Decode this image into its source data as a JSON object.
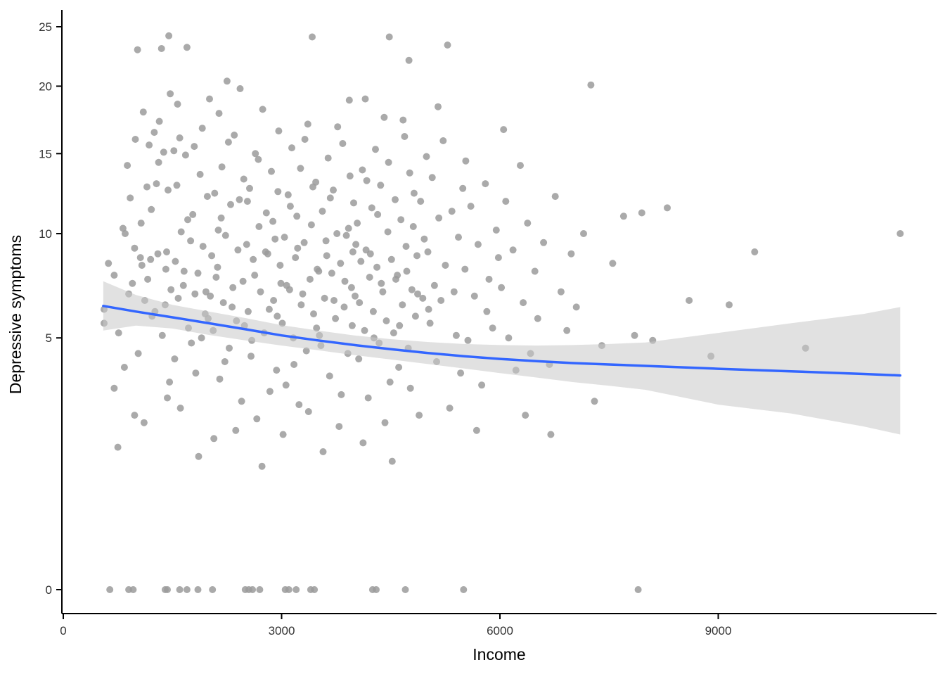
{
  "chart_data": {
    "type": "scatter",
    "title": "",
    "xlabel": "Income",
    "ylabel": "Depressive symptoms",
    "x_axis": {
      "ticks": [
        0,
        3000,
        6000,
        9000
      ],
      "range": [
        0,
        12000
      ]
    },
    "y_axis": {
      "ticks": [
        0,
        5,
        10,
        15,
        20,
        25
      ],
      "range": [
        0,
        25.5
      ],
      "transform": "sqrt"
    },
    "grid": false,
    "legend": "none",
    "point_color": "#9b9b9b",
    "point_opacity": 0.85,
    "smooth_line_color": "#3366FF",
    "band_color": "#c9c9c9",
    "axis_color": "#000000",
    "smooth": {
      "x": [
        550,
        1000,
        1500,
        2000,
        2500,
        3000,
        3500,
        4000,
        4500,
        5000,
        5500,
        6000,
        6500,
        7000,
        7500,
        8000,
        9000,
        10000,
        11000,
        11500
      ],
      "y": [
        6.35,
        6.1,
        5.85,
        5.6,
        5.35,
        5.1,
        4.9,
        4.72,
        4.56,
        4.42,
        4.3,
        4.2,
        4.12,
        4.05,
        4.0,
        3.95,
        3.85,
        3.76,
        3.67,
        3.62
      ],
      "lower": [
        5.3,
        5.5,
        5.38,
        5.12,
        4.9,
        4.7,
        4.52,
        4.34,
        4.18,
        4.02,
        3.86,
        3.7,
        3.55,
        3.4,
        3.28,
        3.15,
        2.7,
        2.45,
        2.1,
        1.9
      ],
      "upper": [
        7.5,
        6.85,
        6.4,
        6.1,
        5.82,
        5.52,
        5.3,
        5.1,
        4.95,
        4.84,
        4.76,
        4.72,
        4.7,
        4.72,
        4.76,
        4.82,
        5.2,
        5.6,
        6.0,
        6.3
      ]
    },
    "points": [
      [
        560,
        5.6
      ],
      [
        560,
        6.2
      ],
      [
        620,
        8.4
      ],
      [
        640,
        0
      ],
      [
        700,
        3.2
      ],
      [
        700,
        7.8
      ],
      [
        750,
        1.6
      ],
      [
        760,
        5.2
      ],
      [
        820,
        10.3
      ],
      [
        840,
        3.9
      ],
      [
        850,
        10.0
      ],
      [
        880,
        14.2
      ],
      [
        900,
        6.9
      ],
      [
        900,
        0
      ],
      [
        920,
        12.1
      ],
      [
        950,
        7.4
      ],
      [
        960,
        0
      ],
      [
        980,
        2.4
      ],
      [
        980,
        9.2
      ],
      [
        990,
        16.0
      ],
      [
        1020,
        23.0
      ],
      [
        1030,
        4.4
      ],
      [
        1060,
        8.7
      ],
      [
        1070,
        10.6
      ],
      [
        1080,
        8.3
      ],
      [
        1100,
        18.0
      ],
      [
        1110,
        2.2
      ],
      [
        1120,
        6.6
      ],
      [
        1150,
        12.8
      ],
      [
        1160,
        7.6
      ],
      [
        1180,
        15.6
      ],
      [
        1200,
        8.6
      ],
      [
        1210,
        11.4
      ],
      [
        1220,
        5.9
      ],
      [
        1250,
        16.5
      ],
      [
        1260,
        6.1
      ],
      [
        1280,
        13.0
      ],
      [
        1300,
        8.9
      ],
      [
        1310,
        14.4
      ],
      [
        1320,
        17.3
      ],
      [
        1350,
        23.1
      ],
      [
        1360,
        5.1
      ],
      [
        1380,
        15.1
      ],
      [
        1400,
        6.4
      ],
      [
        1400,
        0
      ],
      [
        1410,
        8.1
      ],
      [
        1420,
        9.0
      ],
      [
        1430,
        2.9
      ],
      [
        1430,
        0
      ],
      [
        1440,
        12.6
      ],
      [
        1450,
        24.2
      ],
      [
        1460,
        3.4
      ],
      [
        1470,
        19.4
      ],
      [
        1480,
        7.1
      ],
      [
        1520,
        15.2
      ],
      [
        1530,
        4.2
      ],
      [
        1540,
        8.5
      ],
      [
        1560,
        12.9
      ],
      [
        1570,
        18.6
      ],
      [
        1580,
        6.7
      ],
      [
        1600,
        16.1
      ],
      [
        1600,
        0
      ],
      [
        1610,
        2.6
      ],
      [
        1620,
        10.1
      ],
      [
        1650,
        7.3
      ],
      [
        1660,
        8.0
      ],
      [
        1680,
        14.9
      ],
      [
        1700,
        23.2
      ],
      [
        1700,
        0
      ],
      [
        1710,
        10.8
      ],
      [
        1720,
        5.4
      ],
      [
        1750,
        9.6
      ],
      [
        1760,
        4.8
      ],
      [
        1780,
        11.1
      ],
      [
        1800,
        15.5
      ],
      [
        1810,
        6.9
      ],
      [
        1820,
        3.7
      ],
      [
        1850,
        7.9
      ],
      [
        1850,
        0
      ],
      [
        1860,
        1.4
      ],
      [
        1880,
        13.6
      ],
      [
        1900,
        5.0
      ],
      [
        1910,
        16.8
      ],
      [
        1920,
        9.3
      ],
      [
        1950,
        6.0
      ],
      [
        1960,
        7.0
      ],
      [
        1980,
        12.2
      ],
      [
        1990,
        5.8
      ],
      [
        2010,
        19.0
      ],
      [
        2020,
        6.8
      ],
      [
        2040,
        8.8
      ],
      [
        2050,
        0
      ],
      [
        2060,
        5.3
      ],
      [
        2070,
        1.8
      ],
      [
        2080,
        12.4
      ],
      [
        2100,
        7.7
      ],
      [
        2120,
        8.2
      ],
      [
        2130,
        10.2
      ],
      [
        2140,
        17.9
      ],
      [
        2150,
        3.5
      ],
      [
        2170,
        10.9
      ],
      [
        2180,
        14.1
      ],
      [
        2200,
        6.5
      ],
      [
        2220,
        4.1
      ],
      [
        2230,
        9.9
      ],
      [
        2250,
        20.4
      ],
      [
        2270,
        15.8
      ],
      [
        2280,
        4.6
      ],
      [
        2300,
        11.7
      ],
      [
        2320,
        6.3
      ],
      [
        2330,
        7.2
      ],
      [
        2350,
        16.3
      ],
      [
        2370,
        2.0
      ],
      [
        2380,
        5.7
      ],
      [
        2400,
        9.1
      ],
      [
        2420,
        12.0
      ],
      [
        2430,
        19.8
      ],
      [
        2450,
        2.8
      ],
      [
        2470,
        7.5
      ],
      [
        2480,
        13.3
      ],
      [
        2490,
        5.5
      ],
      [
        2500,
        0
      ],
      [
        2520,
        9.4
      ],
      [
        2530,
        11.9
      ],
      [
        2540,
        6.1
      ],
      [
        2550,
        0
      ],
      [
        2560,
        12.7
      ],
      [
        2580,
        4.3
      ],
      [
        2590,
        4.9
      ],
      [
        2600,
        0
      ],
      [
        2610,
        8.6
      ],
      [
        2630,
        7.8
      ],
      [
        2640,
        15.0
      ],
      [
        2660,
        2.3
      ],
      [
        2680,
        14.6
      ],
      [
        2690,
        10.4
      ],
      [
        2700,
        0
      ],
      [
        2710,
        7.0
      ],
      [
        2730,
        1.2
      ],
      [
        2740,
        18.2
      ],
      [
        2760,
        5.2
      ],
      [
        2780,
        9.0
      ],
      [
        2790,
        11.2
      ],
      [
        2810,
        8.9
      ],
      [
        2830,
        6.2
      ],
      [
        2840,
        3.1
      ],
      [
        2860,
        13.8
      ],
      [
        2880,
        10.7
      ],
      [
        2890,
        6.6
      ],
      [
        2910,
        9.7
      ],
      [
        2930,
        3.8
      ],
      [
        2940,
        5.9
      ],
      [
        2950,
        12.5
      ],
      [
        2960,
        16.6
      ],
      [
        2980,
        8.3
      ],
      [
        2990,
        7.4
      ],
      [
        3010,
        5.6
      ],
      [
        3020,
        1.9
      ],
      [
        3040,
        9.8
      ],
      [
        3050,
        0
      ],
      [
        3060,
        3.3
      ],
      [
        3070,
        7.3
      ],
      [
        3090,
        12.3
      ],
      [
        3100,
        0
      ],
      [
        3110,
        7.1
      ],
      [
        3120,
        11.6
      ],
      [
        3140,
        15.4
      ],
      [
        3160,
        5.0
      ],
      [
        3170,
        4.0
      ],
      [
        3190,
        8.7
      ],
      [
        3200,
        0
      ],
      [
        3210,
        11.0
      ],
      [
        3220,
        9.2
      ],
      [
        3240,
        2.7
      ],
      [
        3260,
        14.0
      ],
      [
        3270,
        6.4
      ],
      [
        3290,
        6.9
      ],
      [
        3310,
        9.5
      ],
      [
        3320,
        16.0
      ],
      [
        3340,
        4.5
      ],
      [
        3360,
        17.1
      ],
      [
        3370,
        2.5
      ],
      [
        3390,
        7.6
      ],
      [
        3400,
        0
      ],
      [
        3410,
        10.5
      ],
      [
        3420,
        24.1
      ],
      [
        3430,
        12.8
      ],
      [
        3440,
        6.0
      ],
      [
        3450,
        0
      ],
      [
        3470,
        13.1
      ],
      [
        3480,
        5.4
      ],
      [
        3490,
        8.1
      ],
      [
        3510,
        8.0
      ],
      [
        3520,
        5.1
      ],
      [
        3540,
        4.7
      ],
      [
        3560,
        11.3
      ],
      [
        3570,
        1.5
      ],
      [
        3590,
        6.7
      ],
      [
        3610,
        9.6
      ],
      [
        3620,
        8.8
      ],
      [
        3640,
        14.7
      ],
      [
        3660,
        3.6
      ],
      [
        3670,
        12.1
      ],
      [
        3690,
        7.9
      ],
      [
        3710,
        12.6
      ],
      [
        3720,
        6.6
      ],
      [
        3740,
        5.8
      ],
      [
        3760,
        10.0
      ],
      [
        3770,
        16.9
      ],
      [
        3790,
        2.1
      ],
      [
        3810,
        8.4
      ],
      [
        3820,
        3.0
      ],
      [
        3840,
        15.7
      ],
      [
        3860,
        6.3
      ],
      [
        3870,
        7.5
      ],
      [
        3890,
        9.9
      ],
      [
        3910,
        4.4
      ],
      [
        3920,
        10.3
      ],
      [
        3930,
        18.9
      ],
      [
        3940,
        13.5
      ],
      [
        3960,
        7.2
      ],
      [
        3970,
        5.5
      ],
      [
        3980,
        9.0
      ],
      [
        3990,
        11.8
      ],
      [
        4010,
        6.8
      ],
      [
        4020,
        9.4
      ],
      [
        4040,
        10.6
      ],
      [
        4060,
        4.2
      ],
      [
        4070,
        6.5
      ],
      [
        4090,
        8.5
      ],
      [
        4110,
        13.9
      ],
      [
        4120,
        1.7
      ],
      [
        4140,
        5.3
      ],
      [
        4150,
        19.0
      ],
      [
        4160,
        9.1
      ],
      [
        4170,
        13.2
      ],
      [
        4190,
        2.9
      ],
      [
        4210,
        7.7
      ],
      [
        4220,
        8.9
      ],
      [
        4240,
        11.5
      ],
      [
        4250,
        0
      ],
      [
        4260,
        6.1
      ],
      [
        4270,
        5.0
      ],
      [
        4290,
        15.3
      ],
      [
        4300,
        0
      ],
      [
        4310,
        8.2
      ],
      [
        4320,
        11.1
      ],
      [
        4340,
        4.8
      ],
      [
        4360,
        12.9
      ],
      [
        4370,
        7.4
      ],
      [
        4390,
        7.0
      ],
      [
        4410,
        17.6
      ],
      [
        4420,
        2.2
      ],
      [
        4440,
        5.7
      ],
      [
        4460,
        10.1
      ],
      [
        4470,
        14.4
      ],
      [
        4480,
        24.1
      ],
      [
        4490,
        3.4
      ],
      [
        4510,
        8.6
      ],
      [
        4520,
        1.3
      ],
      [
        4540,
        5.2
      ],
      [
        4560,
        12.0
      ],
      [
        4570,
        7.6
      ],
      [
        4590,
        7.8
      ],
      [
        4610,
        3.9
      ],
      [
        4620,
        5.5
      ],
      [
        4640,
        10.8
      ],
      [
        4660,
        6.4
      ],
      [
        4670,
        17.4
      ],
      [
        4690,
        16.2
      ],
      [
        4700,
        0
      ],
      [
        4710,
        9.3
      ],
      [
        4720,
        8.0
      ],
      [
        4740,
        4.6
      ],
      [
        4750,
        22.1
      ],
      [
        4760,
        13.7
      ],
      [
        4770,
        3.2
      ],
      [
        4790,
        7.1
      ],
      [
        4810,
        10.4
      ],
      [
        4820,
        12.4
      ],
      [
        4840,
        5.9
      ],
      [
        4860,
        8.8
      ],
      [
        4870,
        6.9
      ],
      [
        4890,
        2.4
      ],
      [
        4910,
        11.9
      ],
      [
        4940,
        6.7
      ],
      [
        4960,
        9.7
      ],
      [
        4990,
        14.8
      ],
      [
        5010,
        9.0
      ],
      [
        5020,
        6.2
      ],
      [
        5040,
        5.6
      ],
      [
        5070,
        13.4
      ],
      [
        5100,
        7.3
      ],
      [
        5130,
        4.1
      ],
      [
        5150,
        18.4
      ],
      [
        5160,
        10.9
      ],
      [
        5190,
        6.6
      ],
      [
        5220,
        15.9
      ],
      [
        5250,
        8.3
      ],
      [
        5280,
        23.4
      ],
      [
        5310,
        2.6
      ],
      [
        5340,
        11.3
      ],
      [
        5370,
        7.0
      ],
      [
        5400,
        5.1
      ],
      [
        5430,
        9.8
      ],
      [
        5460,
        3.7
      ],
      [
        5490,
        12.7
      ],
      [
        5500,
        0
      ],
      [
        5520,
        8.1
      ],
      [
        5530,
        14.5
      ],
      [
        5560,
        4.9
      ],
      [
        5600,
        11.6
      ],
      [
        5650,
        6.8
      ],
      [
        5680,
        2.0
      ],
      [
        5700,
        9.4
      ],
      [
        5750,
        3.3
      ],
      [
        5800,
        13.0
      ],
      [
        5820,
        6.1
      ],
      [
        5850,
        7.6
      ],
      [
        5900,
        5.4
      ],
      [
        5950,
        10.2
      ],
      [
        5980,
        8.7
      ],
      [
        6020,
        7.2
      ],
      [
        6050,
        16.7
      ],
      [
        6080,
        11.9
      ],
      [
        6120,
        5.0
      ],
      [
        6180,
        9.1
      ],
      [
        6220,
        3.8
      ],
      [
        6280,
        14.2
      ],
      [
        6320,
        6.5
      ],
      [
        6350,
        2.4
      ],
      [
        6380,
        10.6
      ],
      [
        6420,
        4.4
      ],
      [
        6480,
        8.0
      ],
      [
        6520,
        5.8
      ],
      [
        6600,
        9.5
      ],
      [
        6680,
        4.0
      ],
      [
        6700,
        1.9
      ],
      [
        6760,
        12.2
      ],
      [
        6840,
        7.0
      ],
      [
        6920,
        5.3
      ],
      [
        6980,
        8.9
      ],
      [
        7050,
        6.3
      ],
      [
        7150,
        10.0
      ],
      [
        7250,
        20.1
      ],
      [
        7300,
        2.8
      ],
      [
        7400,
        4.7
      ],
      [
        7550,
        8.4
      ],
      [
        7700,
        11.0
      ],
      [
        7850,
        5.1
      ],
      [
        7900,
        0
      ],
      [
        7950,
        11.2
      ],
      [
        8100,
        4.9
      ],
      [
        8300,
        11.5
      ],
      [
        8600,
        6.6
      ],
      [
        8900,
        4.3
      ],
      [
        9150,
        6.4
      ],
      [
        9500,
        9.0
      ],
      [
        10200,
        4.6
      ],
      [
        11500,
        10.0
      ]
    ]
  }
}
